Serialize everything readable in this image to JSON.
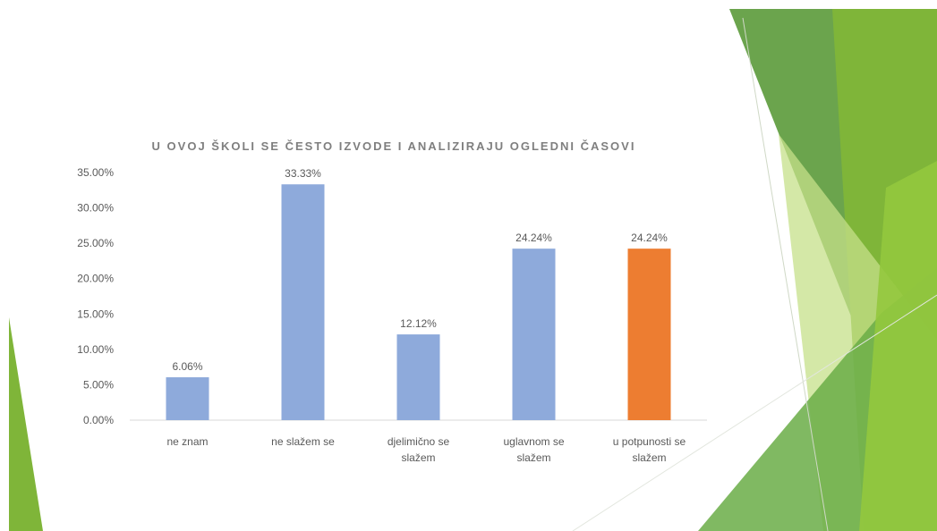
{
  "colors": {
    "bar_default": "#8eaadb",
    "bar_highlight": "#ed7d31",
    "axis_text": "#595959",
    "axis_line": "#d9d9d9",
    "deco_green_dark": "#5b9a3a",
    "deco_green_mid": "#7fb539",
    "deco_green_light": "#c5e08a"
  },
  "chart_data": {
    "type": "bar",
    "title": "U OVOJ ŠKOLI SE ČESTO IZVODE I ANALIZIRAJU OGLEDNI ČASOVI",
    "categories": [
      [
        "ne znam"
      ],
      [
        "ne slažem se"
      ],
      [
        "djelimično se",
        "slažem"
      ],
      [
        "uglavnom se",
        "slažem"
      ],
      [
        "u potpunosti se",
        "slažem"
      ]
    ],
    "values": [
      6.06,
      33.33,
      12.12,
      24.24,
      24.24
    ],
    "data_labels": [
      "6.06%",
      "33.33%",
      "12.12%",
      "24.24%",
      "24.24%"
    ],
    "highlight_index": 4,
    "ylim": [
      0,
      35
    ],
    "yticks": [
      0,
      5,
      10,
      15,
      20,
      25,
      30,
      35
    ],
    "ytick_labels": [
      "0.00%",
      "5.00%",
      "10.00%",
      "15.00%",
      "20.00%",
      "25.00%",
      "30.00%",
      "35.00%"
    ],
    "xlabel": "",
    "ylabel": "",
    "grid": false,
    "legend": "none"
  }
}
